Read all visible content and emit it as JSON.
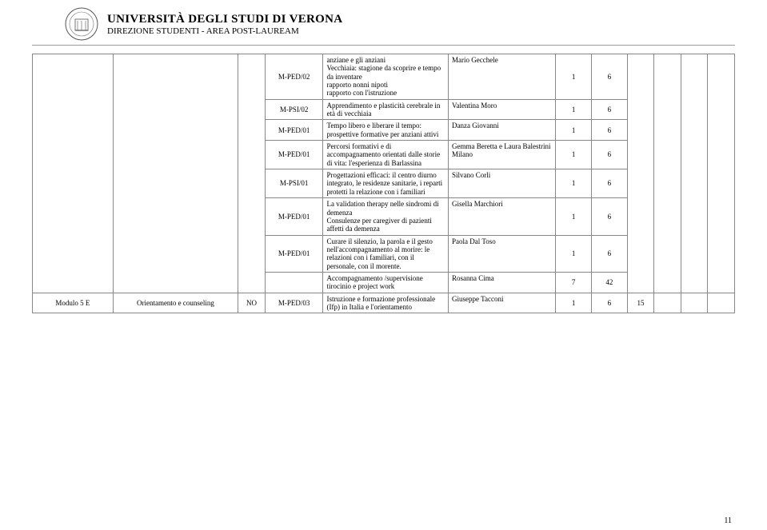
{
  "header": {
    "university": "UNIVERSITÀ DEGLI STUDI DI VERONA",
    "direction": "DIREZIONE STUDENTI  -  AREA POST-LAUREAM"
  },
  "sidecols": {
    "module_label": "Modulo 5 E",
    "module_title": "Orientamento e counseling",
    "obbl": "NO"
  },
  "rows": [
    {
      "ssd": "M-PED/02",
      "denom": "anziane e gli anziani\nVecchiaia: stagione da scoprire e tempo da inventare\nrapporto nonni nipoti\nrapporto con l'istruzione",
      "docente": "Mario Gecchele",
      "n1": "1",
      "n2": "6"
    },
    {
      "ssd": "M-PSI/02",
      "denom": "Apprendimento e plasticità cerebrale in età di vecchiaia",
      "docente": "Valentina Moro",
      "n1": "1",
      "n2": "6"
    },
    {
      "ssd": "M-PED/01",
      "denom": "Tempo libero e liberare il tempo: prospettive formative per anziani attivi",
      "docente": "Danza Giovanni",
      "n1": "1",
      "n2": "6"
    },
    {
      "ssd": "M-PED/01",
      "denom": "Percorsi formativi e di accompagnamento orientati dalle storie di vita: l'esperienza di Barlassina",
      "docente": "Gemma Beretta e Laura Balestrini\nMilano",
      "n1": "1",
      "n2": "6"
    },
    {
      "ssd": "M-PSI/01",
      "denom": "Progettazioni efficaci: il centro diurno integrato, le residenze sanitarie, i reparti protetti la relazione con i familiari",
      "docente": "Silvano Corli",
      "n1": "1",
      "n2": "6"
    },
    {
      "ssd": "M-PED/01",
      "denom": "La validation therapy nelle sindromi di demenza\nConsulenze per caregiver di pazienti affetti da demenza",
      "docente": "Gisella Marchiori",
      "n1": "1",
      "n2": "6"
    },
    {
      "ssd": "M-PED/01",
      "denom": "Curare il silenzio, la parola e il gesto nell'accompagnamento al morire: le relazioni con i familiari, con il personale, con il morente.",
      "docente": "Paola Dal Toso",
      "n1": "1",
      "n2": "6"
    },
    {
      "ssd": "",
      "denom": "Accompagnamento /supervisione tirocinio e project work",
      "docente": "Rosanna Cima",
      "n1": "7",
      "n2": "42"
    }
  ],
  "lastrow": {
    "ssd": "M-PED/03",
    "denom": "Istruzione e formazione professionale (Ifp) in Italia e l'orientamento",
    "docente": "Giuseppe Tacconi",
    "n1": "1",
    "n2": "6",
    "extra": "15"
  },
  "page_number": "11",
  "colors": {
    "border": "#888888",
    "text": "#000000",
    "bg": "#ffffff"
  }
}
